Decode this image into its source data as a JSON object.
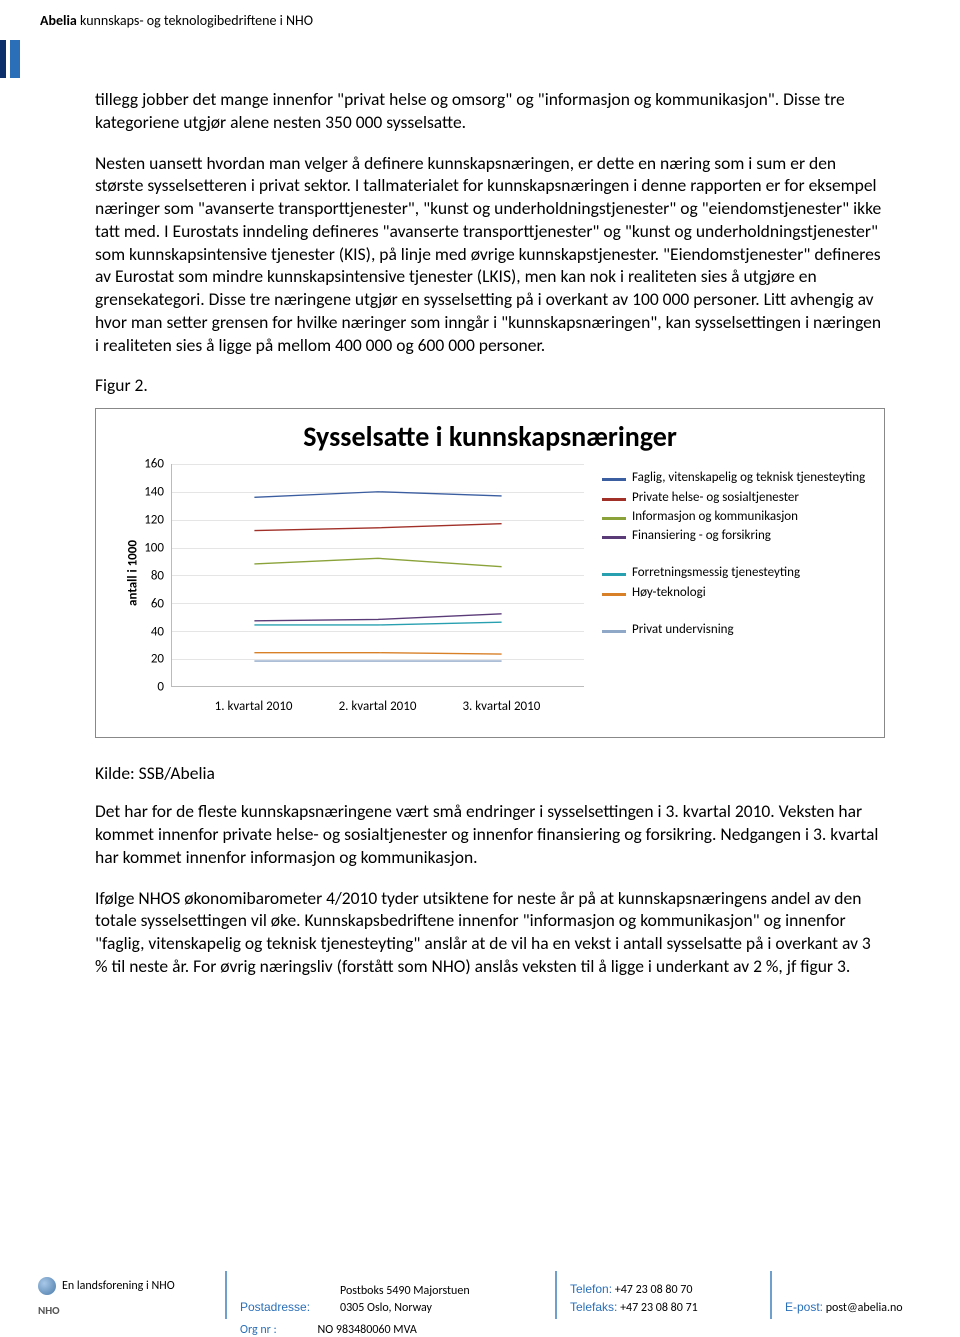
{
  "header": {
    "brand": "Abelia",
    "tagline": "kunnskaps- og teknologibedriftene i NHO"
  },
  "body": {
    "p1": "tillegg jobber det mange innenfor \"privat helse og omsorg\" og \"informasjon og kommunikasjon\". Disse tre kategoriene utgjør alene nesten 350 000 sysselsatte.",
    "p2": "Nesten uansett hvordan man velger å definere kunnskapsnæringen, er dette en næring som i sum er den største sysselsetteren i privat sektor. I tallmaterialet for kunnskapsnæringen i denne rapporten er for eksempel næringer som \"avanserte transporttjenester\", \"kunst og underholdningstjenester\" og \"eiendomstjenester\" ikke tatt med. I Eurostats inndeling defineres \"avanserte transporttjenester\" og \"kunst og underholdningstjenester\" som kunnskapsintensive tjenester (KIS), på linje med øvrige kunnskapstjenester. \"Eiendomstjenester\" defineres av Eurostat som mindre kunnskapsintensive tjenester (LKIS), men kan nok i realiteten sies å utgjøre en grensekategori. Disse tre næringene utgjør en sysselsetting på i overkant av 100 000 personer. Litt avhengig av hvor man setter grensen for hvilke næringer som inngår i \"kunnskapsnæringen\", kan sysselsettingen i næringen i realiteten sies å ligge på mellom 400 000 og 600 000 personer.",
    "fig_label": "Figur 2.",
    "source": "Kilde: SSB/Abelia",
    "p3": "Det har for de fleste kunnskapsnæringene vært små endringer i sysselsettingen i 3. kvartal 2010. Veksten har kommet innenfor private helse- og sosialtjenester og innenfor finansiering og forsikring. Nedgangen i 3. kvartal har kommet innenfor informasjon og kommunikasjon.",
    "p4": "Ifølge NHOS økonomibarometer 4/2010 tyder utsiktene for neste år på at kunnskapsnæringens andel av den totale sysselsettingen vil øke. Kunnskapsbedriftene innenfor \"informasjon og kommunikasjon\" og innenfor \"faglig, vitenskapelig og teknisk tjenesteyting\" anslår at de vil ha en vekst i antall sysselsatte på i overkant av 3 % til neste år. For øvrig næringsliv (forstått som NHO) anslås veksten til å ligge i underkant av 2 %, jf figur 3."
  },
  "chart": {
    "type": "line",
    "title": "Sysselsatte i kunnskapsnæringer",
    "ylabel": "antall i 1000",
    "ylim": [
      0,
      160
    ],
    "ytick_step": 20,
    "yticks": [
      "0",
      "20",
      "40",
      "60",
      "80",
      "100",
      "120",
      "140",
      "160"
    ],
    "categories": [
      "1. kvartal 2010",
      "2. kvartal 2010",
      "3. kvartal 2010"
    ],
    "x_positions_pct": [
      20,
      50,
      80
    ],
    "grid_color": "#e5e5e5",
    "line_width": 3,
    "series": [
      {
        "label": "Faglig, vitenskapelig og teknisk  tjenesteyting",
        "color": "#3b5ea0",
        "values": [
          136,
          140,
          137
        ]
      },
      {
        "label": "Private helse- og sosialtjenester",
        "color": "#a03028",
        "values": [
          112,
          114,
          117
        ]
      },
      {
        "label": "Informasjon og kommunikasjon",
        "color": "#8aa239",
        "values": [
          88,
          92,
          86
        ]
      },
      {
        "label": "Finansiering - og forsikring",
        "color": "#5a3b78",
        "values": [
          47,
          48,
          52
        ]
      },
      {
        "label": "Forretningsmessig tjenesteyting",
        "color": "#28a0b0",
        "values": [
          44,
          44,
          46
        ]
      },
      {
        "label": "Høy-teknologi",
        "color": "#d88028",
        "values": [
          24,
          24,
          23
        ]
      },
      {
        "label": "Privat undervisning",
        "color": "#8fa8c8",
        "values": [
          18,
          18,
          18
        ]
      }
    ],
    "legend_gaps_before": [
      4,
      6
    ]
  },
  "footer": {
    "logo_text": "En landsforening i NHO",
    "nho": "NHO",
    "sep_color": "#6fa0cc",
    "col1": {
      "h": "Postadresse:",
      "l1": "Postboks 5490 Majorstuen",
      "l2": "0305 Oslo, Norway"
    },
    "col2": {
      "h1": "Telefon:",
      "v1": "+47 23 08 80 70",
      "h2": "Telefaks:",
      "v2": "+47 23 08 80 71"
    },
    "col3": {
      "h": "E-post:",
      "v": "post@abelia.no"
    },
    "cut": {
      "h": "Org nr :",
      "v": "NO 983480060 MVA"
    }
  }
}
